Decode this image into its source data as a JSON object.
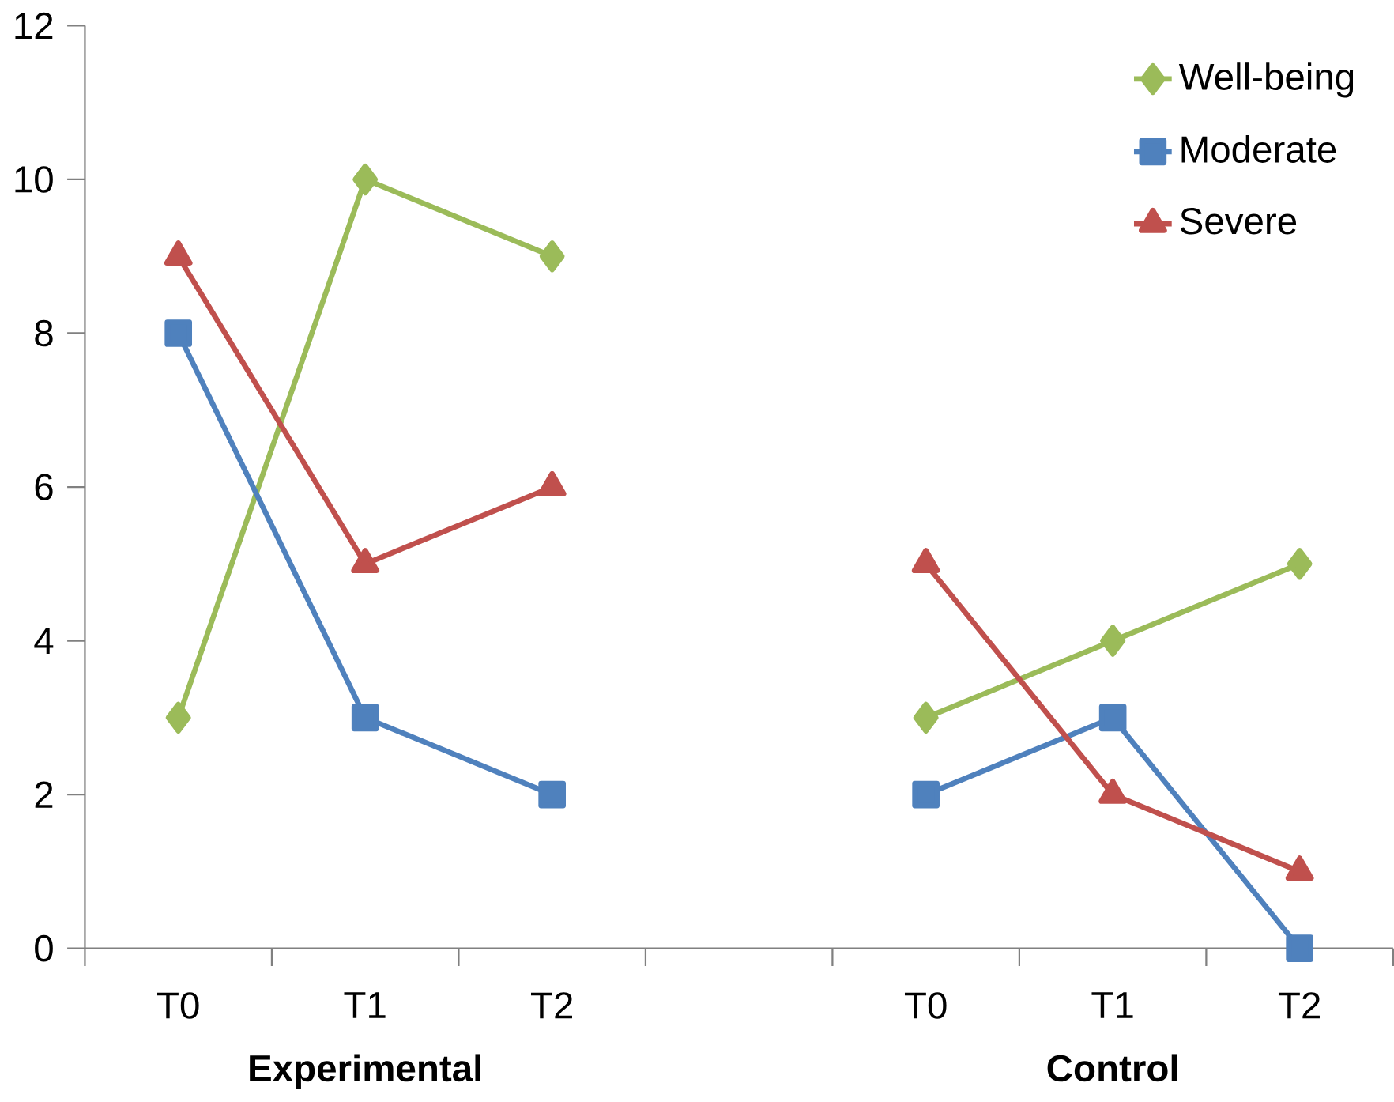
{
  "chart_data": {
    "type": "line",
    "categories": [
      "T0",
      "T1",
      "T2",
      null,
      "T0",
      "T1",
      "T2"
    ],
    "series": [
      {
        "name": "Well-being",
        "color": "#9bbb59",
        "marker": "diamond",
        "values": [
          3,
          10,
          9,
          null,
          3,
          4,
          5
        ]
      },
      {
        "name": "Moderate",
        "color": "#4f81bd",
        "marker": "square",
        "values": [
          8,
          3,
          2,
          null,
          2,
          3,
          0
        ]
      },
      {
        "name": "Severe",
        "color": "#c0504d",
        "marker": "triangle",
        "values": [
          9,
          5,
          6,
          null,
          5,
          2,
          1
        ]
      }
    ],
    "ylim": [
      0,
      12
    ],
    "yticks": [
      0,
      2,
      4,
      6,
      8,
      10,
      12
    ],
    "annotations": [
      "Experimental",
      "Control"
    ],
    "grid": false,
    "legend": "top right",
    "line_style": "solid"
  }
}
